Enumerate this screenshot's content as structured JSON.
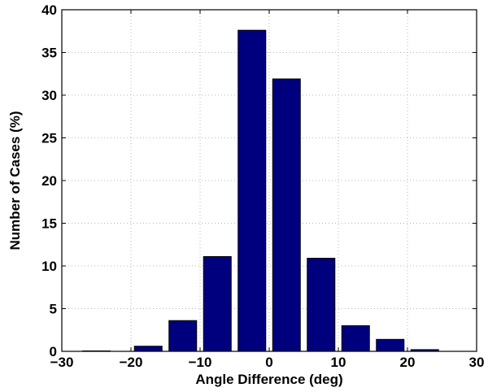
{
  "chart_data": {
    "type": "bar",
    "xlabel": "Angle Difference (deg)",
    "ylabel": "Number of Cases (%)",
    "xlim": [
      -30,
      30
    ],
    "ylim": [
      0,
      40
    ],
    "x_ticks": [
      -30,
      -20,
      -10,
      0,
      10,
      20,
      30
    ],
    "x_tick_labels": [
      "−30",
      "−20",
      "−10",
      "0",
      "10",
      "20",
      "30"
    ],
    "y_ticks": [
      0,
      5,
      10,
      15,
      20,
      25,
      30,
      35,
      40
    ],
    "y_tick_labels": [
      "0",
      "5",
      "10",
      "15",
      "20",
      "25",
      "30",
      "35",
      "40"
    ],
    "grid": true,
    "bar_color": "#00007f",
    "bar_width": 4,
    "x": [
      -25,
      -17.5,
      -12.5,
      -7.5,
      -2.5,
      2.5,
      7.5,
      12.5,
      17.5,
      22.5
    ],
    "values": [
      0.05,
      0.6,
      3.6,
      11.1,
      37.6,
      31.9,
      10.9,
      3.0,
      1.4,
      0.2
    ]
  }
}
